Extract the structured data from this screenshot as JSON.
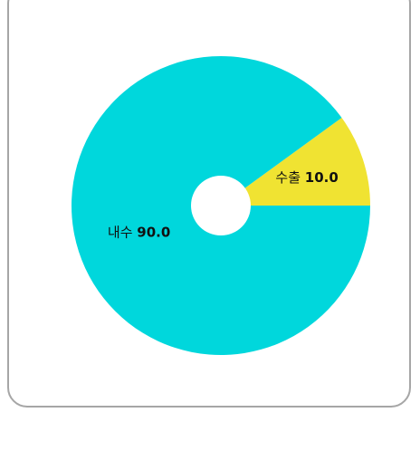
{
  "chart_data": {
    "type": "pie",
    "title": "",
    "donut": true,
    "slices": [
      {
        "label": "수출",
        "value": 10.0,
        "value_text": "10.0",
        "color": "#f0e332"
      },
      {
        "label": "내수",
        "value": 90.0,
        "value_text": "90.0",
        "color": "#00d7dc"
      }
    ],
    "start_angle_deg": 0,
    "direction": "counterclockwise",
    "legend": "none",
    "labels": "on-slice"
  }
}
